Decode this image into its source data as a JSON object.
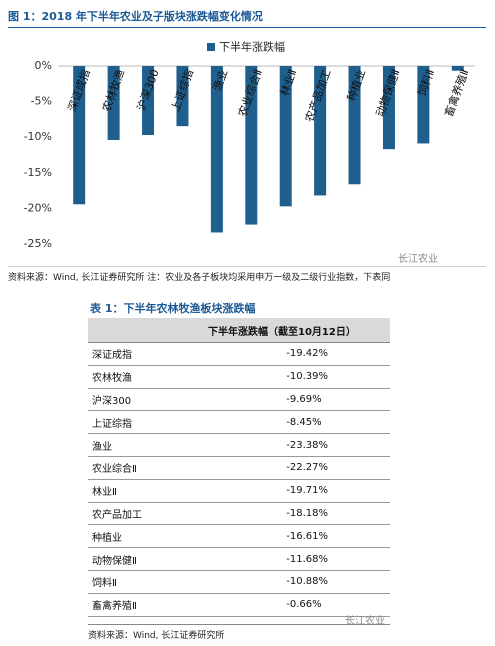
{
  "figure": {
    "caption": "图 1：2018 年下半年农业及子版块涨跌幅变化情况",
    "source": "资料来源：Wind, 长江证券研究所  注：农业及各子板块均采用申万一级及二级行业指数，下表同",
    "watermark": "长江农业"
  },
  "chart_data": {
    "type": "bar",
    "categories": [
      "深证成指",
      "农林牧渔",
      "沪深300",
      "上证综指",
      "渔业",
      "农业综合Ⅱ",
      "林业Ⅱ",
      "农产品加工",
      "种植业",
      "动物保健Ⅱ",
      "饲料Ⅱ",
      "畜禽养殖Ⅱ"
    ],
    "series": [
      {
        "name": "下半年涨跌幅",
        "color": "#1f5f8e",
        "values": [
          -19.42,
          -10.39,
          -9.69,
          -8.45,
          -23.38,
          -22.27,
          -19.71,
          -18.18,
          -16.61,
          -11.68,
          -10.88,
          -0.66
        ]
      }
    ],
    "ylim": [
      -25,
      0
    ],
    "yticks": [
      {
        "value": 0,
        "label": "0%"
      },
      {
        "value": -5,
        "label": "-5%"
      },
      {
        "value": -10,
        "label": "-10%"
      },
      {
        "value": -15,
        "label": "-15%"
      },
      {
        "value": -20,
        "label": "-20%"
      },
      {
        "value": -25,
        "label": "-25%"
      }
    ],
    "legend": "top"
  },
  "table": {
    "caption": "表 1：下半年农林牧渔板块涨跌幅",
    "header": "下半年涨跌幅（截至10月12日）",
    "rows": [
      [
        "深证成指",
        "-19.42%"
      ],
      [
        "农林牧渔",
        "-10.39%"
      ],
      [
        "沪深300",
        "-9.69%"
      ],
      [
        "上证综指",
        "-8.45%"
      ],
      [
        "渔业",
        "-23.38%"
      ],
      [
        "农业综合Ⅱ",
        "-22.27%"
      ],
      [
        "林业Ⅱ",
        "-19.71%"
      ],
      [
        "农产品加工",
        "-18.18%"
      ],
      [
        "种植业",
        "-16.61%"
      ],
      [
        "动物保健Ⅱ",
        "-11.68%"
      ],
      [
        "饲料Ⅱ",
        "-10.88%"
      ],
      [
        "畜禽养殖Ⅱ",
        "-0.66%"
      ]
    ],
    "source": "资料来源：Wind, 长江证券研究所",
    "watermark": "长江农业"
  }
}
